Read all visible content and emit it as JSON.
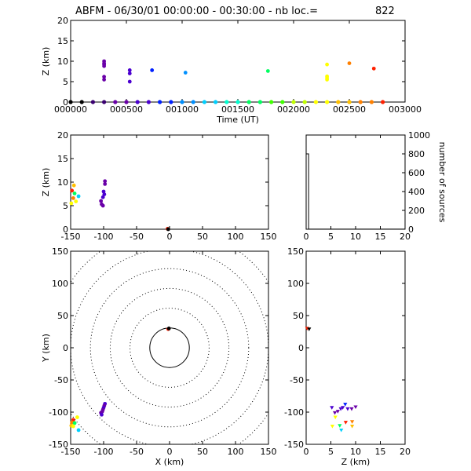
{
  "title": "ABFM - 06/30/01 00:00:00 - 00:30:00 - nb loc.=",
  "count": "822",
  "colors": {
    "ink": "#000000",
    "palette": [
      "#000000",
      "#3a0070",
      "#6a00a8",
      "#4b00d0",
      "#0020ff",
      "#0090ff",
      "#00d0ff",
      "#00ffd0",
      "#00ff60",
      "#40ff00",
      "#c0ff00",
      "#ffff00",
      "#ffc000",
      "#ff8000",
      "#ff2000"
    ]
  },
  "chart_data": [
    {
      "id": "time_z",
      "type": "scatter",
      "xlabel": "Time (UT)",
      "ylabel": "Z (km)",
      "xlim": [
        0,
        3000
      ],
      "ylim": [
        0,
        20
      ],
      "xticks": [
        0,
        500,
        1000,
        1500,
        2000,
        2500,
        3000
      ],
      "xtick_labels": [
        "000000",
        "000500",
        "001000",
        "001500",
        "002000",
        "002500",
        "003000"
      ],
      "yticks": [
        0,
        5,
        10,
        15,
        20
      ],
      "points": [
        {
          "x": 300,
          "y": 10,
          "c": 2
        },
        {
          "x": 300,
          "y": 9.5,
          "c": 2
        },
        {
          "x": 300,
          "y": 9.2,
          "c": 2
        },
        {
          "x": 300,
          "y": 8.8,
          "c": 2
        },
        {
          "x": 300,
          "y": 6.2,
          "c": 2
        },
        {
          "x": 300,
          "y": 5.5,
          "c": 2
        },
        {
          "x": 530,
          "y": 7.8,
          "c": 3
        },
        {
          "x": 530,
          "y": 7.0,
          "c": 3
        },
        {
          "x": 530,
          "y": 5.0,
          "c": 3
        },
        {
          "x": 730,
          "y": 7.8,
          "c": 4
        },
        {
          "x": 1030,
          "y": 7.2,
          "c": 5
        },
        {
          "x": 1770,
          "y": 7.6,
          "c": 8
        },
        {
          "x": 2300,
          "y": 9.2,
          "c": 11
        },
        {
          "x": 2300,
          "y": 6.3,
          "c": 11
        },
        {
          "x": 2300,
          "y": 5.9,
          "c": 11
        },
        {
          "x": 2300,
          "y": 5.5,
          "c": 11
        },
        {
          "x": 2500,
          "y": 9.5,
          "c": 13
        },
        {
          "x": 2720,
          "y": 8.2,
          "c": 14
        }
      ],
      "baseline_markers": [
        0,
        100,
        200,
        300,
        400,
        500,
        600,
        700,
        800,
        900,
        1000,
        1100,
        1200,
        1300,
        1400,
        1500,
        1600,
        1700,
        1800,
        1900,
        2000,
        2100,
        2200,
        2300,
        2400,
        2500,
        2600,
        2700,
        2800
      ]
    },
    {
      "id": "x_z",
      "type": "scatter",
      "xlabel": "",
      "ylabel": "Z (km)",
      "xlim": [
        -150,
        150
      ],
      "ylim": [
        0,
        20
      ],
      "xticks": [
        -150,
        -100,
        -50,
        0,
        50,
        100,
        150
      ],
      "yticks": [
        0,
        5,
        10,
        15,
        20
      ],
      "points": [
        {
          "x": -98,
          "y": 10.2,
          "c": 2
        },
        {
          "x": -98,
          "y": 9.6,
          "c": 2
        },
        {
          "x": -100,
          "y": 8.0,
          "c": 3
        },
        {
          "x": -99,
          "y": 7.4,
          "c": 3
        },
        {
          "x": -101,
          "y": 6.8,
          "c": 3
        },
        {
          "x": -104,
          "y": 6.0,
          "c": 2
        },
        {
          "x": -103,
          "y": 5.3,
          "c": 2
        },
        {
          "x": -101,
          "y": 5.0,
          "c": 2
        },
        {
          "x": -145,
          "y": 9.3,
          "c": 12
        },
        {
          "x": -148,
          "y": 8.2,
          "c": 14
        },
        {
          "x": -144,
          "y": 7.6,
          "c": 8
        },
        {
          "x": -138,
          "y": 7.0,
          "c": 6
        },
        {
          "x": -146,
          "y": 6.6,
          "c": 13
        },
        {
          "x": -142,
          "y": 5.9,
          "c": 11
        },
        {
          "x": -149,
          "y": 5.5,
          "c": 11
        },
        {
          "x": -3,
          "y": 0.1,
          "c": 14
        },
        {
          "x": -2,
          "y": 0.0,
          "c": 0
        }
      ]
    },
    {
      "id": "z_hist",
      "type": "bar",
      "xlabel": "",
      "ylabel": "number of sources",
      "xlim": [
        0,
        20
      ],
      "ylim": [
        0,
        1000
      ],
      "xticks": [
        0,
        5,
        10,
        15,
        20
      ],
      "yticks": [
        0,
        200,
        400,
        600,
        800,
        1000
      ],
      "bins": [
        {
          "x0": 0.0,
          "x1": 0.5,
          "value": 800
        },
        {
          "x0": 0.5,
          "x1": 20.0,
          "value": 1
        }
      ]
    },
    {
      "id": "x_y",
      "type": "scatter",
      "xlabel": "X (km)",
      "ylabel": "Y (km)",
      "xlim": [
        -150,
        150
      ],
      "ylim": [
        -150,
        150
      ],
      "xticks": [
        -150,
        -100,
        -50,
        0,
        50,
        100,
        150
      ],
      "yticks": [
        -150,
        -100,
        -50,
        0,
        50,
        100,
        150
      ],
      "range_rings_km": [
        30,
        60,
        90,
        120,
        150,
        180,
        210
      ],
      "points": [
        {
          "x": -2,
          "y": 29,
          "c": 14
        },
        {
          "x": -1,
          "y": 30,
          "c": 0
        },
        {
          "x": -98,
          "y": -87,
          "c": 3
        },
        {
          "x": -99,
          "y": -90,
          "c": 2
        },
        {
          "x": -100,
          "y": -93,
          "c": 3
        },
        {
          "x": -101,
          "y": -96,
          "c": 2
        },
        {
          "x": -102,
          "y": -99,
          "c": 2
        },
        {
          "x": -104,
          "y": -101,
          "c": 2
        },
        {
          "x": -103,
          "y": -104,
          "c": 3
        },
        {
          "x": -140,
          "y": -108,
          "c": 11
        },
        {
          "x": -146,
          "y": -112,
          "c": 14
        },
        {
          "x": -148,
          "y": -116,
          "c": 13
        },
        {
          "x": -144,
          "y": -117,
          "c": 8
        },
        {
          "x": -149,
          "y": -121,
          "c": 12
        },
        {
          "x": -146,
          "y": -122,
          "c": 11
        },
        {
          "x": -138,
          "y": -128,
          "c": 6
        }
      ]
    },
    {
      "id": "z_y",
      "type": "scatter",
      "xlabel": "Z (km)",
      "ylabel": "",
      "xlim": [
        0,
        20
      ],
      "ylim": [
        -150,
        150
      ],
      "xticks": [
        0,
        5,
        10,
        15,
        20
      ],
      "yticks": [
        -150,
        -100,
        -50,
        0,
        50,
        100,
        150
      ],
      "points": [
        {
          "x": 0.2,
          "y": 30,
          "c": 14
        },
        {
          "x": 0.6,
          "y": 29,
          "c": 0
        },
        {
          "x": 5.2,
          "y": -93,
          "c": 3
        },
        {
          "x": 5.8,
          "y": -101,
          "c": 2
        },
        {
          "x": 6.4,
          "y": -99,
          "c": 2
        },
        {
          "x": 7.0,
          "y": -95,
          "c": 3
        },
        {
          "x": 7.4,
          "y": -93,
          "c": 3
        },
        {
          "x": 7.9,
          "y": -88,
          "c": 4
        },
        {
          "x": 8.4,
          "y": -95,
          "c": 3
        },
        {
          "x": 9.2,
          "y": -95,
          "c": 2
        },
        {
          "x": 10.0,
          "y": -92,
          "c": 2
        },
        {
          "x": 5.3,
          "y": -122,
          "c": 11
        },
        {
          "x": 5.9,
          "y": -108,
          "c": 11
        },
        {
          "x": 6.8,
          "y": -121,
          "c": 8
        },
        {
          "x": 7.1,
          "y": -128,
          "c": 6
        },
        {
          "x": 8.0,
          "y": -116,
          "c": 14
        },
        {
          "x": 9.3,
          "y": -122,
          "c": 12
        },
        {
          "x": 9.3,
          "y": -115,
          "c": 13
        }
      ]
    }
  ]
}
